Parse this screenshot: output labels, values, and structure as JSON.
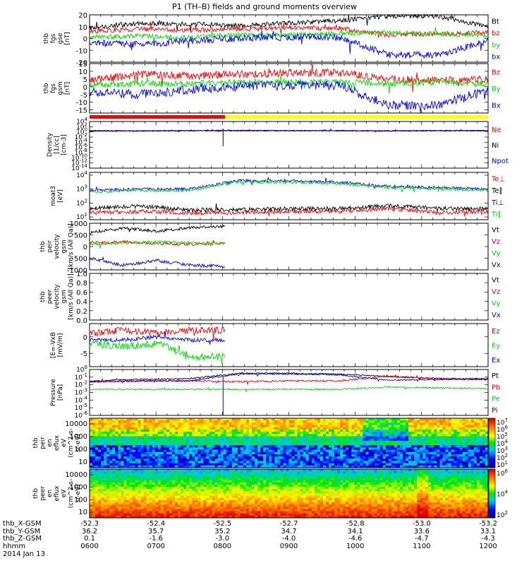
{
  "title": "P1 (TH–B) fields and ground moments overview",
  "colors": {
    "black": "#000000",
    "red": "#ff0000",
    "green": "#00dd00",
    "blue": "#0000ff",
    "yellow": "#ffff00"
  },
  "chart_data": [
    {
      "type": "line",
      "id": "fgs_gse",
      "ylabel": [
        "thb",
        "fgs",
        "gse",
        "[nT]"
      ],
      "ylim": [
        -20,
        20
      ],
      "ticks": [
        -20,
        -10,
        0,
        10,
        20
      ],
      "series": [
        {
          "name": "Bt",
          "color": "black",
          "level": [
            9,
            13,
            12,
            11,
            13,
            15,
            19,
            19,
            10
          ],
          "noise": 2
        },
        {
          "name": "bz",
          "color": "red",
          "level": [
            6,
            8,
            7,
            8,
            9,
            9,
            3,
            4,
            5
          ],
          "noise": 2
        },
        {
          "name": "by",
          "color": "green",
          "level": [
            1,
            2,
            1,
            3,
            3,
            4,
            5,
            4,
            3
          ],
          "noise": 2
        },
        {
          "name": "bx",
          "color": "blue",
          "level": [
            -3,
            -5,
            -2,
            0,
            1,
            1,
            -14,
            -14,
            -2
          ],
          "noise": 3
        }
      ]
    },
    {
      "type": "line",
      "id": "fgs_gsm",
      "ylabel": [
        "thb",
        "fgs",
        "gsm",
        "[nT]"
      ],
      "ylim": [
        -17,
        15
      ],
      "ticks": [
        -15,
        -10,
        -5,
        0,
        5,
        10,
        15
      ],
      "series": [
        {
          "name": "Bz",
          "color": "red",
          "level": [
            4,
            8,
            7,
            8,
            9,
            9,
            5,
            4,
            5
          ],
          "noise": 2.5
        },
        {
          "name": "By",
          "color": "green",
          "level": [
            1,
            2,
            2,
            3,
            3,
            3,
            2,
            3,
            2
          ],
          "noise": 2
        },
        {
          "name": "Bx",
          "color": "blue",
          "level": [
            -3,
            -5,
            -2,
            0,
            1,
            1,
            -12,
            -12,
            -2
          ],
          "noise": 3
        }
      ]
    },
    {
      "type": "bar_status",
      "id": "mode_bar",
      "segments": [
        {
          "from": 0,
          "to": 0.34,
          "color": "red"
        },
        {
          "from": 0.34,
          "to": 1,
          "color": "yellow"
        }
      ]
    },
    {
      "type": "line",
      "id": "density",
      "log": true,
      "ylabel": [
        "Density",
        "[1/cc]",
        "[cm-3]"
      ],
      "ylim_exp": [
        -14,
        4
      ],
      "tick_labels": [
        "10^4",
        "10^2",
        "10^0",
        "10^-2",
        "10^-4",
        "10^-6",
        "10^-8",
        "10^-10",
        "10^-12",
        "10^-14"
      ],
      "series": [
        {
          "name": "Ne",
          "color": "red",
          "level": [
            0.5,
            0.4,
            0.5,
            0.6,
            0.5,
            0.5,
            0.4,
            0.5,
            0.5
          ],
          "noise": 0.15
        },
        {
          "name": "Ni",
          "color": "black",
          "level": [
            0.4,
            0.4,
            0.5,
            0.5,
            0.5,
            0.5,
            0.4,
            0.5,
            0.5
          ],
          "noise": 0.15
        },
        {
          "name": "Npot",
          "color": "blue",
          "level": [
            0.3,
            0.3,
            0.4,
            0.4,
            0.4,
            0.4,
            0.3,
            0.4,
            0.4
          ],
          "noise": 0.15
        }
      ]
    },
    {
      "type": "line",
      "id": "temperature",
      "log": true,
      "ylabel": [
        "moat3",
        "[eV]"
      ],
      "ylim_exp": [
        0.8,
        4.2
      ],
      "tick_labels": [
        "10^1",
        "10^2",
        "10^3",
        "10^4"
      ],
      "series": [
        {
          "name": "Te⊥",
          "color": "red",
          "level": [
            1.3,
            1.4,
            1.3,
            1.3,
            1.4,
            1.4,
            1.6,
            1.3,
            1.4
          ],
          "noise": 0.15
        },
        {
          "name": "Te∥",
          "color": "black",
          "level": [
            1.6,
            1.8,
            1.5,
            1.5,
            1.6,
            1.6,
            1.8,
            1.6,
            1.6
          ],
          "noise": 0.15
        },
        {
          "name": "Ti⊥",
          "color": "blue",
          "level": [
            2.9,
            3.0,
            3.0,
            3.6,
            3.6,
            3.5,
            3.2,
            3.1,
            3.0
          ],
          "noise": 0.1
        },
        {
          "name": "Ti∥",
          "color": "green",
          "level": [
            2.8,
            2.9,
            2.9,
            3.5,
            3.5,
            3.4,
            3.1,
            3.0,
            2.9
          ],
          "noise": 0.1
        }
      ]
    },
    {
      "type": "line",
      "id": "peir_velocity",
      "ylabel": [
        "thb",
        "peir",
        "velocity",
        "gsm",
        "[km/s (All Qa)]"
      ],
      "ylim": [
        -1000,
        1000
      ],
      "ticks": [
        -1000,
        -500,
        0,
        500,
        1000
      ],
      "data_until": 0.34,
      "series": [
        {
          "name": "Vt",
          "color": "black",
          "level": [
            600,
            800,
            650,
            820,
            850
          ],
          "noise": 60
        },
        {
          "name": "Vz",
          "color": "red",
          "level": [
            150,
            200,
            120,
            100,
            150
          ],
          "noise": 60
        },
        {
          "name": "Vy",
          "color": "green",
          "level": [
            100,
            150,
            200,
            150,
            150
          ],
          "noise": 60
        },
        {
          "name": "Vx",
          "color": "blue",
          "level": [
            -500,
            -800,
            -600,
            -800,
            -850
          ],
          "noise": 70
        }
      ]
    },
    {
      "type": "line",
      "id": "peer_velocity",
      "empty": true,
      "ylabel": [
        "thb",
        "peer",
        "velocity",
        "gsm",
        "[km/s (All Qa)]"
      ],
      "ylim": [
        0,
        1
      ],
      "ticks": [
        0.0,
        0.2,
        0.4,
        0.6,
        0.8,
        1.0
      ],
      "series": [
        {
          "name": "Vt",
          "color": "black"
        },
        {
          "name": "Vz",
          "color": "red"
        },
        {
          "name": "Vy",
          "color": "green"
        },
        {
          "name": "Vx",
          "color": "blue"
        }
      ]
    },
    {
      "type": "line",
      "id": "efield",
      "ylabel": [
        "[E=-VxB",
        "[mV/m]"
      ],
      "ylim": [
        -9,
        4
      ],
      "ticks": [
        -5,
        0
      ],
      "data_until": 0.34,
      "series": [
        {
          "name": "Ez",
          "color": "red",
          "level": [
            1,
            2,
            1,
            2,
            2
          ],
          "noise": 1
        },
        {
          "name": "Ey",
          "color": "green",
          "level": [
            -2,
            -3,
            -2,
            -6,
            -6
          ],
          "noise": 1.2
        },
        {
          "name": "Ex",
          "color": "blue",
          "level": [
            -1,
            -1,
            0,
            -1,
            -1
          ],
          "noise": 0.6
        }
      ]
    },
    {
      "type": "line",
      "id": "pressure",
      "log": true,
      "ylabel": [
        "Pressure",
        "[nPa]"
      ],
      "ylim_exp": [
        -6,
        0
      ],
      "tick_labels": [
        "10^0",
        "10^-1",
        "10^-2",
        "10^-3",
        "10^-4",
        "10^-5",
        "10^-6"
      ],
      "series": [
        {
          "name": "Pt",
          "color": "black",
          "level": [
            -1.5,
            -1.3,
            -1.2,
            -0.5,
            -0.5,
            -0.6,
            -0.9,
            -1.2,
            -1.2
          ],
          "noise": 0.08
        },
        {
          "name": "Pb",
          "color": "red",
          "level": [
            -1.6,
            -1.5,
            -1.5,
            -1.6,
            -1.5,
            -1.5,
            -0.9,
            -1.2,
            -1.3
          ],
          "noise": 0.12
        },
        {
          "name": "Pe",
          "color": "green",
          "level": [
            -2.6,
            -2.6,
            -2.6,
            -2.6,
            -2.6,
            -2.6,
            -2.3,
            -2.4,
            -2.5
          ],
          "noise": 0.1
        },
        {
          "name": "Pi",
          "color": "blue",
          "level": [
            -1.6,
            -1.5,
            -1.5,
            -0.6,
            -0.6,
            -0.7,
            -1.4,
            -1.3,
            -1.3
          ],
          "noise": 0.08
        }
      ]
    },
    {
      "type": "heatmap",
      "id": "peir_spectrogram",
      "ylabel": [
        "thb",
        "peir",
        "en",
        "eflux",
        "eV",
        "(cm^2-s-",
        "sr-eV)"
      ],
      "ytick_labels": [
        "10000",
        "1000",
        "100",
        "10"
      ],
      "colorbar_labels": [
        "10^7",
        "10^6",
        "10^5",
        "10^4",
        "10^3",
        "10^2",
        "10^1"
      ]
    },
    {
      "type": "heatmap",
      "id": "peer_spectrogram",
      "ylabel": [
        "thb",
        "peer",
        "en",
        "eflux",
        "eV",
        "(cm^2-s-",
        "sr-eV)"
      ],
      "ytick_labels": [
        "10000",
        "1000",
        "100",
        "10"
      ],
      "colorbar_labels": [
        "10^6",
        "10^4",
        "10^2"
      ]
    }
  ],
  "footer": {
    "row_labels": [
      "thb_X-GSM",
      "thb_Y-GSM",
      "thb_Z-GSM",
      "hhmm"
    ],
    "date": "2014 Jan 13",
    "columns": [
      [
        "-52.3",
        "36.2",
        "0.1",
        "0600"
      ],
      [
        "-52.4",
        "35.7",
        "-1.6",
        "0700"
      ],
      [
        "-52.5",
        "35.2",
        "-3.0",
        "0800"
      ],
      [
        "-52.7",
        "34.7",
        "-4.0",
        "0900"
      ],
      [
        "-52.8",
        "34.1",
        "-4.6",
        "1000"
      ],
      [
        "-53.0",
        "33.6",
        "-4.7",
        "1100"
      ],
      [
        "-53.2",
        "33.1",
        "-4.3",
        "1200"
      ]
    ]
  }
}
